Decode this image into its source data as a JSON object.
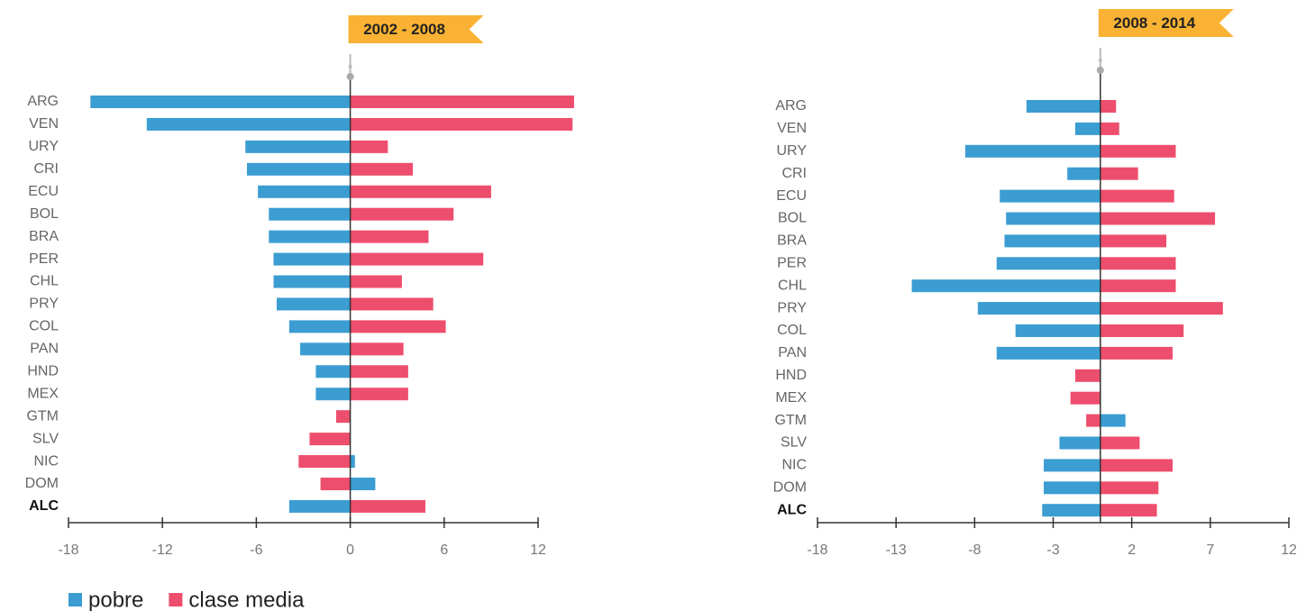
{
  "chart_data": [
    {
      "type": "diverging-bar",
      "title": "2002 - 2008",
      "categories": [
        "ARG",
        "VEN",
        "URY",
        "CRI",
        "ECU",
        "BOL",
        "BRA",
        "PER",
        "CHL",
        "PRY",
        "COL",
        "PAN",
        "HND",
        "MEX",
        "GTM",
        "SLV",
        "NIC",
        "DOM",
        "ALC"
      ],
      "series": [
        {
          "name": "pobre",
          "color": "#3b9dd2",
          "values": [
            -16.6,
            -13.0,
            -6.7,
            -6.6,
            -5.9,
            -5.2,
            -5.2,
            -4.9,
            -4.9,
            -4.7,
            -3.9,
            -3.2,
            -2.2,
            -2.2,
            0,
            0,
            0.3,
            1.6,
            -3.9
          ]
        },
        {
          "name": "clase media",
          "color": "#ee4e6d",
          "values": [
            14.3,
            14.2,
            2.4,
            4.0,
            9.0,
            6.6,
            5.0,
            8.5,
            3.3,
            5.3,
            6.1,
            3.4,
            3.7,
            3.7,
            -0.9,
            -2.6,
            -3.3,
            -1.9,
            4.8
          ]
        }
      ],
      "xlim": [
        -18,
        12
      ],
      "xticks": [
        -18,
        -12,
        -6,
        0,
        6,
        12
      ]
    },
    {
      "type": "diverging-bar",
      "title": "2008 - 2014",
      "categories": [
        "ARG",
        "VEN",
        "URY",
        "CRI",
        "ECU",
        "BOL",
        "BRA",
        "PER",
        "CHL",
        "PRY",
        "COL",
        "PAN",
        "HND",
        "MEX",
        "GTM",
        "SLV",
        "NIC",
        "DOM",
        "ALC"
      ],
      "series": [
        {
          "color": "#3b9dd2",
          "values": [
            -4.7,
            -1.6,
            -8.6,
            -2.1,
            -6.4,
            -6.0,
            -6.1,
            -6.6,
            -12.0,
            -7.8,
            -5.4,
            -6.6,
            0,
            0,
            1.6,
            -2.6,
            -3.6,
            -3.6,
            -3.7
          ]
        },
        {
          "color": "#ee4e6d",
          "values": [
            1.0,
            1.2,
            4.8,
            2.4,
            4.7,
            7.3,
            4.2,
            4.8,
            4.8,
            7.8,
            5.3,
            4.6,
            -1.6,
            -1.9,
            -0.9,
            2.5,
            4.6,
            3.7,
            3.6
          ]
        }
      ],
      "xlim": [
        -18,
        12
      ],
      "xticks": [
        -18,
        -13,
        -8,
        -3,
        2,
        7,
        12
      ]
    }
  ]
}
